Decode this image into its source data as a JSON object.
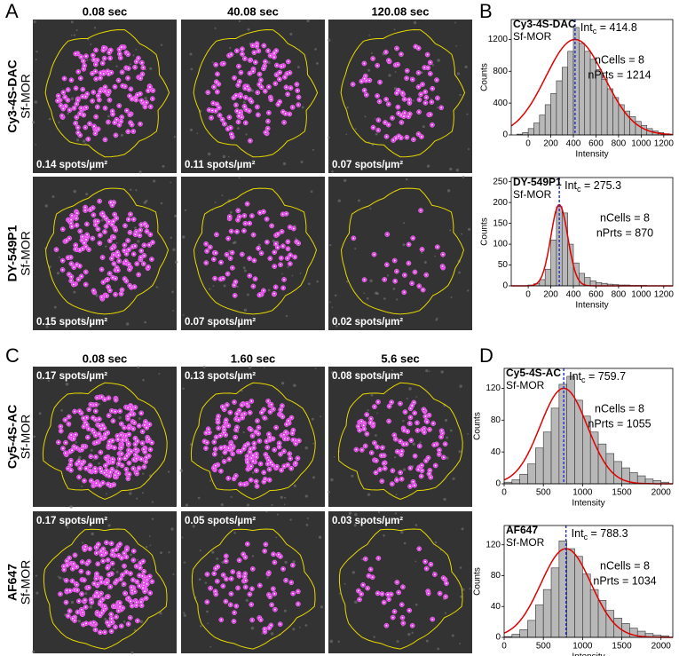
{
  "panel_labels": [
    "A",
    "B",
    "C",
    "D"
  ],
  "image_panels": [
    {
      "times": [
        "0.08 sec",
        "40.08 sec",
        "120.08 sec"
      ],
      "rows": [
        {
          "dye": "Cy3-4S-DAC",
          "construct": "Sf-MOR",
          "densities": [
            "0.14 spots/µm²",
            "0.11 spots/µm²",
            "0.07 spots/µm²"
          ]
        },
        {
          "dye": "DY-549P1",
          "construct": "Sf-MOR",
          "densities": [
            "0.15 spots/µm²",
            "0.07 spots/µm²",
            "0.02 spots/µm²"
          ]
        }
      ]
    },
    {
      "times": [
        "0.08 sec",
        "1.60 sec",
        "5.6 sec"
      ],
      "rows": [
        {
          "dye": "Cy5-4S-AC",
          "construct": "Sf-MOR",
          "densities": [
            "0.17 spots/µm²",
            "0.13 spots/µm²",
            "0.08 spots/µm²"
          ]
        },
        {
          "dye": "AF647",
          "construct": "Sf-MOR",
          "densities": [
            "0.17 spots/µm²",
            "0.05 spots/µm²",
            "0.03 spots/µm²"
          ]
        }
      ]
    }
  ],
  "chart_data": [
    {
      "type": "histogram",
      "title": "Cy3-4S-DAC",
      "subtitle": "Sf-MOR",
      "xlabel": "Intensity",
      "ylabel": "Counts",
      "bins": [
        -100,
        -50,
        0,
        50,
        100,
        150,
        200,
        250,
        300,
        350,
        400,
        450,
        500,
        550,
        600,
        650,
        700,
        750,
        800,
        850,
        900,
        950,
        1000,
        1050,
        1100,
        1150,
        1200,
        1250
      ],
      "values": [
        10,
        30,
        80,
        150,
        250,
        380,
        520,
        680,
        850,
        1050,
        1350,
        1150,
        1050,
        950,
        820,
        700,
        580,
        470,
        380,
        300,
        230,
        170,
        120,
        80,
        50,
        30,
        15
      ],
      "xlim": [
        -150,
        1280
      ],
      "ylim": [
        0,
        1450
      ],
      "xticks": [
        0,
        200,
        400,
        600,
        800,
        1000,
        1200
      ],
      "yticks": [
        0,
        400,
        800,
        1200
      ],
      "color": "#b8b8b8",
      "fit": {
        "mean": 414.8,
        "sd": 260,
        "peak": 1200,
        "color": "#e00000"
      },
      "mean_line_color": "#1f2fd0",
      "annotation": [
        "Int",
        "c",
        " = 414.8"
      ],
      "stats": [
        "nCells = 8",
        "nPrts = 1214"
      ]
    },
    {
      "type": "histogram",
      "title": "DY-549P1",
      "subtitle": "Sf-MOR",
      "xlabel": "Intensity",
      "ylabel": "Counts",
      "bins": [
        -100,
        -50,
        0,
        50,
        100,
        150,
        200,
        250,
        300,
        350,
        400,
        450,
        500,
        550,
        600,
        650,
        700,
        750,
        800,
        850,
        900,
        950,
        1000,
        1050,
        1100,
        1150,
        1200,
        1250
      ],
      "values": [
        0,
        0,
        2,
        5,
        15,
        40,
        110,
        190,
        175,
        100,
        55,
        30,
        20,
        12,
        8,
        6,
        4,
        3,
        2,
        2,
        1,
        1,
        1,
        0,
        0,
        0,
        0
      ],
      "xlim": [
        -150,
        1280
      ],
      "ylim": [
        0,
        260
      ],
      "xticks": [
        0,
        200,
        400,
        600,
        800,
        1000,
        1200
      ],
      "yticks": [
        0,
        50,
        100,
        150,
        200,
        250
      ],
      "color": "#b8b8b8",
      "fit": {
        "mean": 275.3,
        "sd": 75,
        "peak": 195,
        "color": "#e00000"
      },
      "mean_line_color": "#1f2fd0",
      "annotation": [
        "Int",
        "c",
        " = 275.3"
      ],
      "stats": [
        "nCells = 8",
        "nPrts = 870"
      ]
    },
    {
      "type": "histogram",
      "title": "Cy5-4S-AC",
      "subtitle": "Sf-MOR",
      "xlabel": "Intensity",
      "ylabel": "Counts",
      "bins": [
        0,
        100,
        200,
        300,
        400,
        500,
        600,
        700,
        800,
        900,
        1000,
        1100,
        1200,
        1300,
        1400,
        1500,
        1600,
        1700,
        1800,
        1900,
        2000,
        2100
      ],
      "values": [
        2,
        5,
        12,
        25,
        45,
        65,
        95,
        125,
        135,
        105,
        85,
        65,
        50,
        38,
        28,
        20,
        14,
        10,
        6,
        4,
        2
      ],
      "xlim": [
        0,
        2150
      ],
      "ylim": [
        0,
        145
      ],
      "xticks": [
        0,
        500,
        1000,
        1500,
        2000
      ],
      "yticks": [
        0,
        40,
        80,
        120
      ],
      "color": "#b8b8b8",
      "fit": {
        "mean": 759.7,
        "sd": 300,
        "peak": 120,
        "color": "#e00000"
      },
      "mean_line_color": "#1f2fd0",
      "annotation": [
        "Int",
        "c",
        " = 759.7"
      ],
      "stats": [
        "nCells = 8",
        "nPrts = 1055"
      ]
    },
    {
      "type": "histogram",
      "title": "AF647",
      "subtitle": "Sf-MOR",
      "xlabel": "Intensity",
      "ylabel": "Counts",
      "bins": [
        0,
        100,
        200,
        300,
        400,
        500,
        600,
        700,
        800,
        900,
        1000,
        1100,
        1200,
        1300,
        1400,
        1500,
        1600,
        1700,
        1800,
        1900,
        2000,
        2100
      ],
      "values": [
        1,
        4,
        10,
        22,
        42,
        62,
        90,
        125,
        115,
        105,
        82,
        62,
        48,
        35,
        25,
        18,
        12,
        8,
        5,
        3,
        2
      ],
      "xlim": [
        0,
        2150
      ],
      "ylim": [
        0,
        145
      ],
      "xticks": [
        0,
        500,
        1000,
        1500,
        2000
      ],
      "yticks": [
        0,
        40,
        80,
        120
      ],
      "color": "#b8b8b8",
      "fit": {
        "mean": 788.3,
        "sd": 320,
        "peak": 115,
        "color": "#e00000"
      },
      "mean_line_color": "#1f2fd0",
      "annotation": [
        "Int",
        "c",
        " = 788.3"
      ],
      "stats": [
        "nCells = 8",
        "nPrts = 1034"
      ]
    }
  ]
}
